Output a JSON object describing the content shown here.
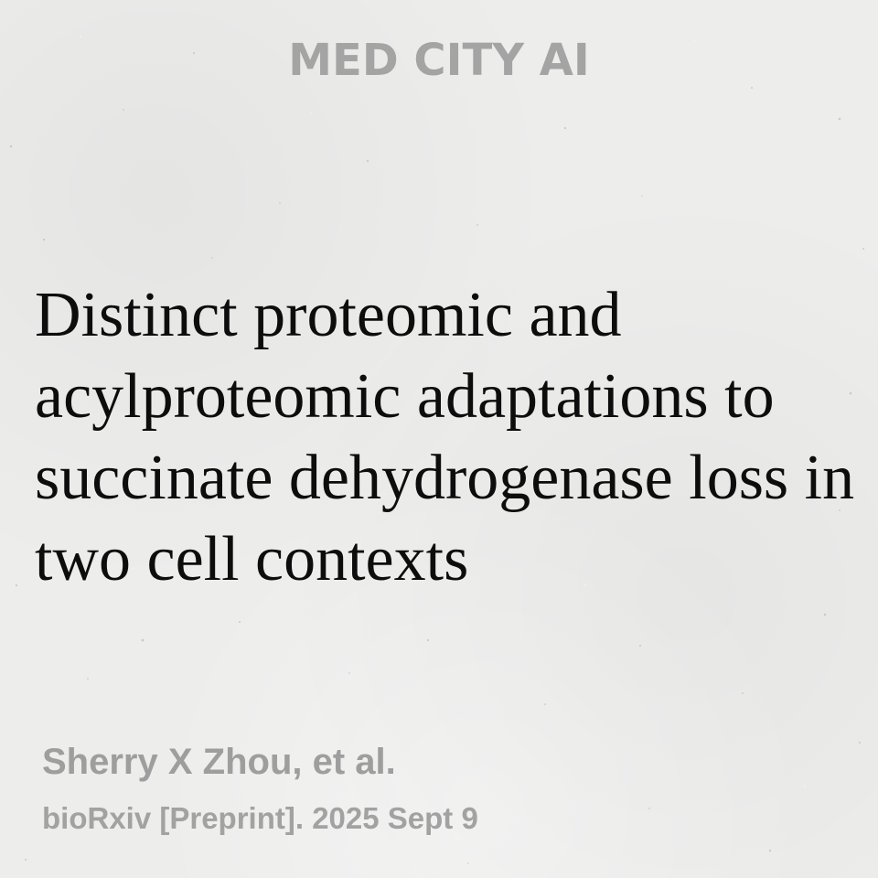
{
  "brand": {
    "name": "MED CITY AI"
  },
  "article": {
    "title": "Distinct proteomic and acylproteomic adaptations to succinate dehydrogenase loss in two cell contexts",
    "authors": "Sherry X Zhou, et al.",
    "citation": "bioRxiv [Preprint]. 2025 Sept 9"
  },
  "colors": {
    "background": "#ededec",
    "title_text": "#0d0d0d",
    "muted_text": "#a4a4a4"
  }
}
